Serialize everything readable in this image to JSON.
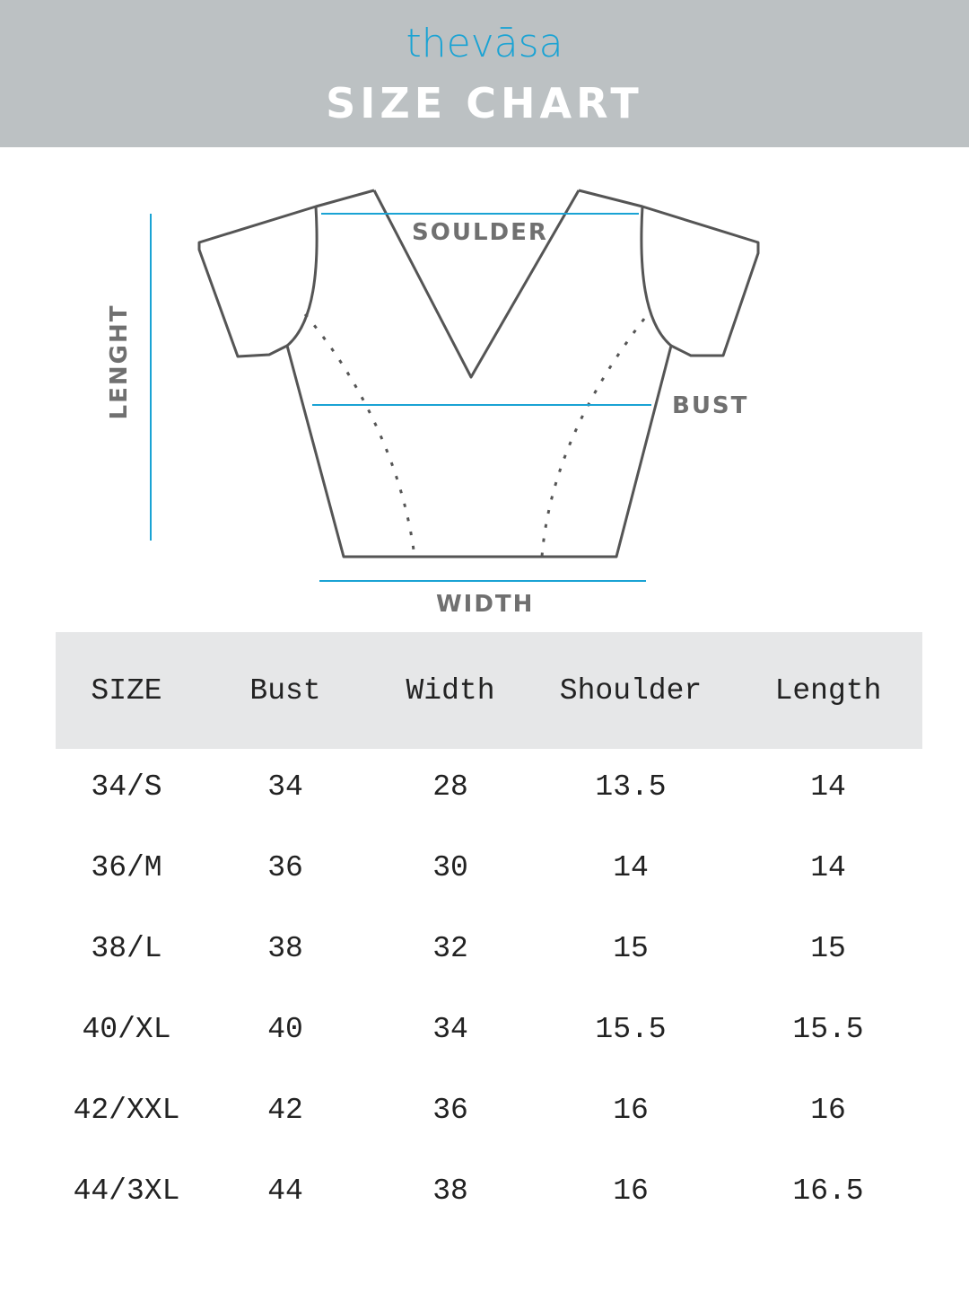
{
  "header": {
    "logo": "thevāsa",
    "title": "SIZE CHART"
  },
  "diagram": {
    "labels": {
      "shoulder": "SOULDER",
      "bust": "BUST",
      "width": "WIDTH",
      "length": "LENGHT"
    },
    "colors": {
      "measure_line": "#1aa3d4",
      "outline": "#555555",
      "label": "#707070"
    }
  },
  "table": {
    "headers": [
      "SIZE",
      "Bust",
      "Width",
      "Shoulder",
      "Length"
    ],
    "rows": [
      [
        "34/S",
        "34",
        "28",
        "13.5",
        "14"
      ],
      [
        "36/M",
        "36",
        "30",
        "14",
        "14"
      ],
      [
        "38/L",
        "38",
        "32",
        "15",
        "15"
      ],
      [
        "40/XL",
        "40",
        "34",
        "15.5",
        "15.5"
      ],
      [
        "42/XXL",
        "42",
        "36",
        "16",
        "16"
      ],
      [
        "44/3XL",
        "44",
        "38",
        "16",
        "16.5"
      ]
    ]
  },
  "colors": {
    "banner": "#bcc1c3",
    "brand": "#1aa3d4",
    "table_header": "#e6e7e8"
  }
}
